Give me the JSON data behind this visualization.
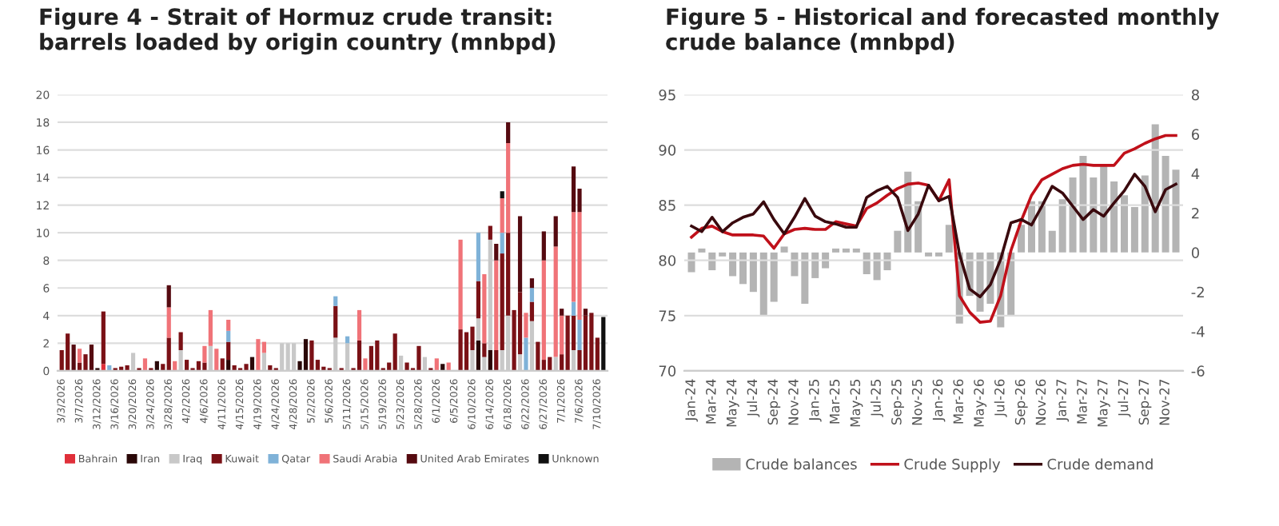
{
  "chart_data": [
    {
      "type": "bar",
      "stacked": true,
      "title": "Figure 4 - Strait of Hormuz crude transit: barrels loaded by origin country (mnbpd)",
      "categories": [
        "3/3/2026",
        null,
        null,
        "3/7/2026",
        null,
        null,
        "3/12/2026",
        null,
        null,
        "3/16/2026",
        null,
        null,
        "3/20/2026",
        null,
        null,
        "3/24/2026",
        null,
        null,
        "3/28/2026",
        null,
        null,
        "4/2/2026",
        null,
        null,
        "4/6/2026",
        null,
        null,
        "4/11/2026",
        null,
        null,
        "4/15/2026",
        null,
        null,
        "4/19/2026",
        null,
        null,
        "4/24/2026",
        null,
        null,
        "4/28/2026",
        null,
        null,
        "5/2/2026",
        null,
        null,
        "5/6/2026",
        null,
        null,
        "5/11/2026",
        null,
        null,
        "5/15/2026",
        null,
        null,
        "5/19/2026",
        null,
        null,
        "5/23/2026",
        null,
        null,
        "5/28/2026",
        null,
        null,
        "6/1/2026",
        null,
        null,
        "6/5/2026",
        null,
        null,
        "6/10/2026",
        null,
        null,
        "6/14/2026",
        null,
        null,
        "6/18/2026",
        null,
        null,
        "6/22/2026",
        null,
        null,
        "6/27/2026",
        null,
        null,
        "7/1/2026",
        null,
        null,
        "7/6/2026",
        null,
        null,
        "7/10/2026",
        null
      ],
      "series": [
        {
          "name": "Bahrain",
          "color": "#e0303a",
          "values": [
            0,
            0,
            0,
            0,
            0,
            0,
            0,
            0.5,
            0,
            0,
            0,
            0,
            0,
            0,
            0,
            0,
            0,
            0,
            0,
            0,
            0,
            0,
            0,
            0,
            0,
            0,
            0,
            0,
            0,
            0,
            0,
            0,
            0,
            0,
            0,
            0,
            0,
            0,
            0,
            0,
            0,
            0,
            0,
            0,
            0,
            0,
            0,
            0,
            0,
            0,
            0,
            0,
            0,
            0,
            0,
            0,
            0,
            0,
            0,
            0,
            0,
            0,
            0,
            0,
            0,
            0,
            0,
            0,
            0,
            0,
            0,
            0,
            0,
            0,
            0,
            0,
            0,
            0,
            0,
            0,
            0,
            0,
            0,
            0,
            0,
            0,
            0,
            0,
            0,
            0,
            0,
            0
          ]
        },
        {
          "name": "Iran",
          "color": "#2a0808",
          "values": [
            0,
            0,
            0,
            0,
            0,
            0,
            0.2,
            0,
            0,
            0,
            0,
            0,
            0,
            0,
            0,
            0,
            0.7,
            0,
            0,
            0,
            0,
            0,
            0,
            0,
            0,
            0,
            0,
            0,
            0.8,
            0,
            0,
            0,
            1.0,
            0,
            0,
            0,
            0,
            0,
            0,
            0,
            0.7,
            2.3,
            0,
            0,
            0,
            0,
            0,
            0,
            0,
            0,
            0,
            0,
            0,
            0,
            0,
            0,
            0,
            0,
            0,
            0,
            0,
            0,
            0,
            0,
            0.5,
            0,
            0,
            0,
            0,
            0,
            2.2,
            0,
            1.5,
            0,
            0,
            0,
            0,
            0,
            0,
            0,
            0,
            0,
            0,
            0,
            0,
            0,
            0,
            0,
            0,
            0,
            0,
            0
          ]
        },
        {
          "name": "Iraq",
          "color": "#c8c8c8",
          "values": [
            0,
            0,
            0,
            0,
            0,
            0,
            0,
            0,
            0,
            0,
            0,
            0,
            1.3,
            0,
            0,
            0,
            0,
            0,
            0,
            0,
            1.5,
            0,
            0,
            0,
            0,
            1.8,
            0,
            0,
            0,
            0,
            0,
            0,
            0,
            0,
            1.3,
            0,
            0,
            2.0,
            2.0,
            2.0,
            0,
            0,
            0,
            0,
            0,
            0,
            2.4,
            0,
            2.0,
            0,
            0,
            0,
            0,
            0,
            0,
            0,
            0,
            1.1,
            0,
            0,
            0,
            1.0,
            0,
            0,
            0,
            0,
            0,
            0,
            0,
            1.5,
            1.6,
            1.0,
            8.0,
            0,
            1.5,
            4.0,
            0,
            1.2,
            0,
            3.6,
            0,
            0,
            0,
            1.0,
            0,
            0,
            1.5,
            0,
            0,
            0,
            0,
            0
          ]
        },
        {
          "name": "Kuwait",
          "color": "#7a1116",
          "values": [
            1.5,
            2.7,
            0,
            0.6,
            1.2,
            0,
            0,
            3.8,
            0,
            0.2,
            0.3,
            0.4,
            0,
            0.2,
            0,
            0.2,
            0,
            0.5,
            2.4,
            0,
            1.3,
            0.8,
            0.2,
            0.7,
            0.6,
            0,
            0,
            0.9,
            1.3,
            0.4,
            0.2,
            0.5,
            0,
            0,
            0,
            0.4,
            0.2,
            0,
            0,
            0,
            0,
            0,
            2.2,
            0.8,
            0.3,
            0.2,
            2.3,
            0.2,
            0,
            0.2,
            2.2,
            0,
            1.8,
            2.2,
            0.2,
            0.6,
            2.7,
            0,
            0.6,
            0.2,
            1.8,
            0,
            0.2,
            0,
            0,
            0,
            0,
            3.0,
            2.8,
            1.7,
            2.7,
            1.0,
            1.0,
            1.5,
            7.0,
            6.0,
            4.4,
            4.5,
            0,
            1.4,
            2.1,
            0.8,
            1.0,
            0,
            1.2,
            4.0,
            2.5,
            1.5,
            4.0,
            4.2,
            2.4,
            0
          ]
        },
        {
          "name": "Qatar",
          "color": "#7fb2d8",
          "values": [
            0,
            0,
            0,
            0,
            0,
            0,
            0,
            0,
            0.4,
            0,
            0,
            0,
            0,
            0,
            0,
            0,
            0,
            0,
            0,
            0,
            0,
            0,
            0,
            0,
            0,
            0,
            0,
            0,
            0.8,
            0,
            0,
            0,
            0,
            0,
            0,
            0,
            0,
            0,
            0,
            0,
            0,
            0,
            0,
            0,
            0,
            0,
            0.7,
            0,
            0.5,
            0,
            0,
            0,
            0,
            0,
            0,
            0,
            0,
            0,
            0,
            0,
            0,
            0,
            0,
            0,
            0,
            0,
            0,
            0,
            0,
            0,
            3.5,
            0,
            0,
            0,
            1.5,
            0,
            0,
            0,
            2.4,
            1.0,
            0,
            0,
            0,
            0,
            0,
            0,
            1.0,
            2.2,
            0,
            0,
            0,
            0
          ]
        },
        {
          "name": "Saudi Arabia",
          "color": "#f07378",
          "values": [
            0,
            0,
            0,
            1.0,
            0,
            0,
            0,
            0,
            0,
            0,
            0,
            0,
            0,
            0,
            0.9,
            0,
            0,
            0,
            2.2,
            0.7,
            0,
            0,
            0,
            0,
            1.2,
            2.6,
            1.6,
            0,
            0.8,
            0,
            0,
            0,
            0,
            2.3,
            0.8,
            0,
            0,
            0,
            0,
            0,
            0,
            0,
            0,
            0,
            0,
            0,
            0,
            0,
            0,
            0,
            2.2,
            0.9,
            0,
            0,
            0,
            0,
            0,
            0,
            0,
            0,
            0,
            0,
            0,
            0.9,
            0,
            0.6,
            0,
            6.5,
            0,
            0,
            0,
            5.0,
            0,
            6.5,
            2.5,
            6.5,
            0,
            0,
            1.8,
            0,
            0,
            7.2,
            0,
            8.0,
            2.8,
            0,
            6.5,
            7.8,
            0,
            0,
            0,
            0
          ]
        },
        {
          "name": "United Arab Emirates",
          "color": "#550a10",
          "values": [
            0,
            0,
            1.9,
            0,
            0,
            1.9,
            0,
            0,
            0,
            0,
            0,
            0,
            0,
            0,
            0,
            0,
            0,
            0,
            1.6,
            0,
            0,
            0,
            0,
            0,
            0,
            0,
            0,
            0,
            0,
            0,
            0,
            0,
            0,
            0,
            0,
            0,
            0,
            0,
            0,
            0,
            0,
            0,
            0,
            0,
            0,
            0,
            0,
            0,
            0,
            0,
            0,
            0,
            0,
            0,
            0,
            0,
            0,
            0,
            0,
            0,
            0,
            0,
            0,
            0,
            0,
            0,
            0,
            0,
            0,
            0,
            0,
            0,
            0,
            1.2,
            0,
            1.5,
            0,
            5.5,
            0,
            0.7,
            0,
            2.1,
            0,
            2.2,
            0.5,
            0,
            3.3,
            1.7,
            0.5,
            0,
            0,
            0
          ]
        },
        {
          "name": "Unknown",
          "color": "#111111",
          "values": [
            0,
            0,
            0,
            0,
            0,
            0,
            0,
            0,
            0,
            0,
            0,
            0,
            0,
            0,
            0,
            0,
            0,
            0,
            0,
            0,
            0,
            0,
            0,
            0,
            0,
            0,
            0,
            0,
            0,
            0,
            0,
            0,
            0,
            0,
            0,
            0,
            0,
            0,
            0,
            0,
            0,
            0,
            0,
            0,
            0,
            0,
            0,
            0,
            0,
            0,
            0,
            0,
            0,
            0,
            0,
            0,
            0,
            0,
            0,
            0,
            0,
            0,
            0,
            0,
            0,
            0,
            0,
            0,
            0,
            0,
            0,
            0,
            0,
            0,
            0.5,
            0,
            0,
            0,
            0,
            0,
            0,
            0,
            0,
            0,
            0,
            0,
            0,
            0,
            0,
            0,
            0,
            3.9
          ]
        }
      ],
      "ylim": [
        0,
        20
      ],
      "yticks": [
        0,
        2,
        4,
        6,
        8,
        10,
        12,
        14,
        16,
        18,
        20
      ],
      "grid": "y",
      "legend": "bottom"
    },
    {
      "type": "bar",
      "title": "Figure 5 - Historical and forecasted monthly crude balance (mnbpd)",
      "categories": [
        "Jan-24",
        null,
        "Mar-24",
        null,
        "May-24",
        null,
        "Jul-24",
        null,
        "Sep-24",
        null,
        "Nov-24",
        null,
        "Jan-25",
        null,
        "Mar-25",
        null,
        "May-25",
        null,
        "Jul-25",
        null,
        "Sep-25",
        null,
        "Nov-25",
        null,
        "Jan-26",
        null,
        "Mar-26",
        null,
        "May-26",
        null,
        "Jul-26",
        null,
        "Sep-26",
        null,
        "Nov-26",
        null,
        "Jan-27",
        null,
        "Mar-27",
        null,
        "May-27",
        null,
        "Jul-27",
        null,
        "Sep-27",
        null,
        "Nov-27",
        null
      ],
      "series": [
        {
          "name": "Crude balances",
          "type": "bar",
          "axis": "y2",
          "color": "#b4b4b4",
          "values": [
            -1.0,
            0.2,
            -0.9,
            -0.2,
            -1.2,
            -1.6,
            -2.0,
            -3.2,
            -2.5,
            0.3,
            -1.2,
            -2.6,
            -1.3,
            -0.8,
            0.2,
            0.2,
            0.2,
            -1.1,
            -1.4,
            -0.9,
            1.1,
            4.1,
            2.6,
            -0.2,
            -0.2,
            1.4,
            -3.6,
            -2.2,
            -3.0,
            -2.6,
            -3.8,
            -3.2,
            1.4,
            2.6,
            2.6,
            1.1,
            2.7,
            3.8,
            4.9,
            3.8,
            4.4,
            3.6,
            2.9,
            2.3,
            3.9,
            6.5,
            4.9,
            4.2
          ]
        },
        {
          "name": "Crude Supply",
          "type": "line",
          "color": "#c0101a",
          "values": [
            82.1,
            82.9,
            83.1,
            82.6,
            82.3,
            82.3,
            82.3,
            82.2,
            81.1,
            82.4,
            82.8,
            82.9,
            82.8,
            82.8,
            83.5,
            83.3,
            83.1,
            84.7,
            85.2,
            85.9,
            86.5,
            86.9,
            87.0,
            86.8,
            85.4,
            87.3,
            76.8,
            75.3,
            74.4,
            74.5,
            76.8,
            80.9,
            83.6,
            85.9,
            87.3,
            87.8,
            88.3,
            88.6,
            88.7,
            88.6,
            88.6,
            88.6,
            89.7,
            90.1,
            90.6,
            91.0,
            91.3,
            91.3
          ]
        },
        {
          "name": "Crude demand",
          "type": "line",
          "color": "#3a0a0e",
          "values": [
            83.1,
            82.6,
            83.9,
            82.6,
            83.4,
            83.9,
            84.2,
            85.3,
            83.7,
            82.4,
            83.9,
            85.6,
            84.0,
            83.5,
            83.3,
            83.0,
            83.0,
            85.7,
            86.3,
            86.7,
            85.7,
            82.7,
            84.2,
            86.8,
            85.4,
            85.8,
            80.6,
            77.4,
            76.7,
            77.8,
            80.1,
            83.4,
            83.7,
            83.2,
            84.9,
            86.7,
            86.1,
            84.9,
            83.7,
            84.6,
            84.0,
            85.2,
            86.3,
            87.8,
            86.7,
            84.4,
            86.4,
            86.9
          ]
        }
      ],
      "ylim": [
        70,
        95
      ],
      "yticks": [
        70,
        75,
        80,
        85,
        90,
        95
      ],
      "y2lim": [
        -6,
        8
      ],
      "y2ticks": [
        -6,
        -4,
        -2,
        0,
        2,
        4,
        6,
        8
      ],
      "grid": "y",
      "legend": "bottom"
    }
  ]
}
